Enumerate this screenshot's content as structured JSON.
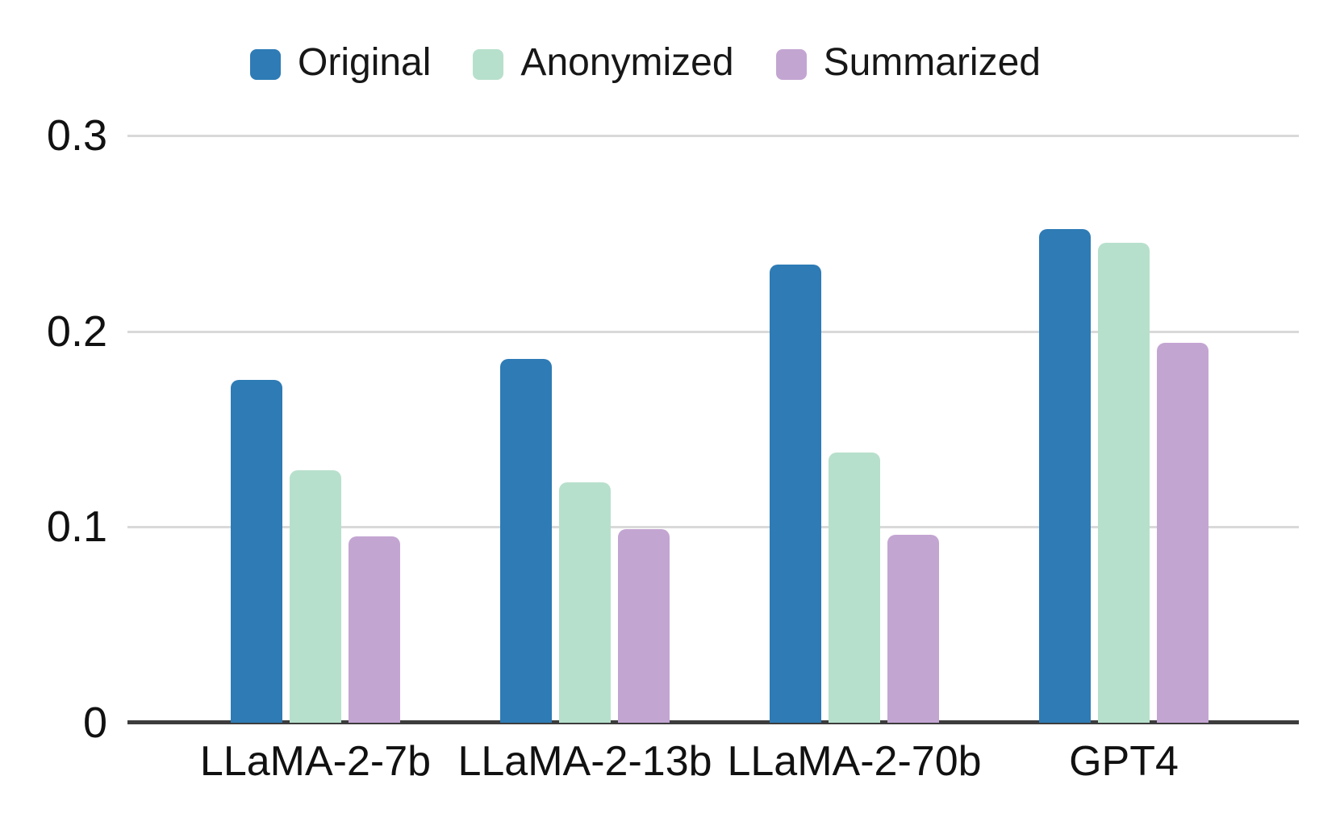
{
  "chart_data": {
    "type": "bar",
    "title": "",
    "categories": [
      "LLaMA-2-7b",
      "LLaMA-2-13b",
      "LLaMA-2-70b",
      "GPT4"
    ],
    "series": [
      {
        "name": "Original",
        "color": "#2E7BB5",
        "values": [
          0.175,
          0.186,
          0.234,
          0.252
        ]
      },
      {
        "name": "Anonymized",
        "color": "#B7E0CC",
        "values": [
          0.129,
          0.123,
          0.138,
          0.245
        ]
      },
      {
        "name": "Summarized",
        "color": "#C3A5D2",
        "values": [
          0.095,
          0.099,
          0.096,
          0.194
        ]
      }
    ],
    "xlabel": "",
    "ylabel": "",
    "ylim": [
      0,
      0.3
    ],
    "yticks": [
      0,
      0.1,
      0.2,
      0.3
    ],
    "ytick_labels": [
      "0",
      "0.1",
      "0.2",
      "0.3"
    ],
    "grid": true,
    "legend_position": "top",
    "colors": {
      "gridline": "#D9D9D9",
      "axis_line": "#3D3D3D",
      "text": "#111111",
      "background": "#FFFFFF"
    }
  }
}
